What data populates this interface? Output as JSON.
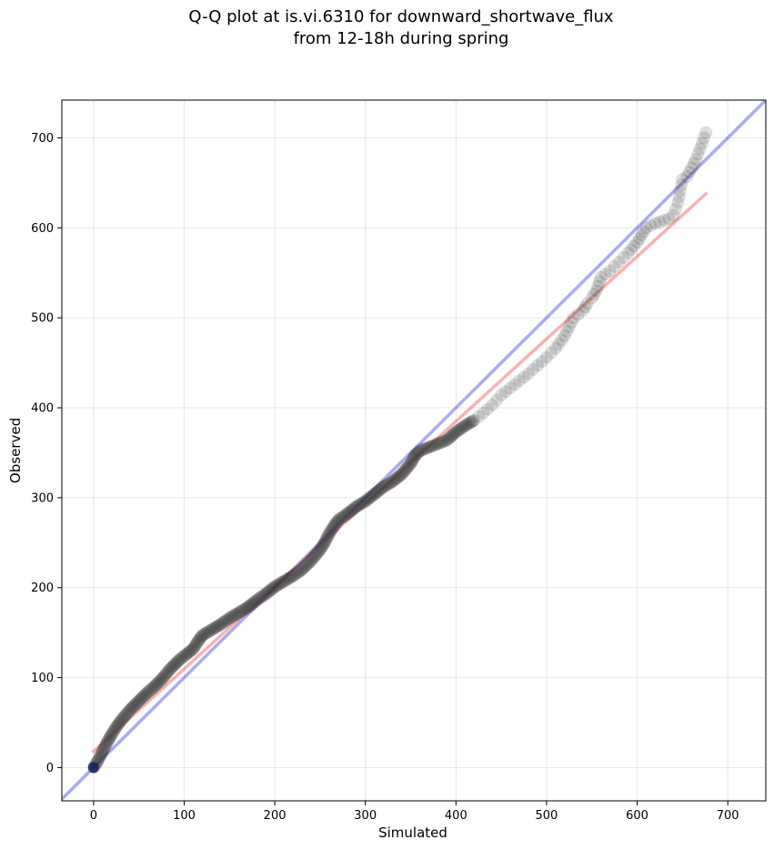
{
  "chart_data": {
    "type": "scatter",
    "title": "Q-Q plot at is.vi.6310 for downward_shortwave_flux",
    "subtitle": "from 12-18h during spring",
    "xlabel": "Simulated",
    "ylabel": "Observed",
    "xlim": [
      -35,
      742
    ],
    "ylim": [
      -37,
      742
    ],
    "x_ticks": [
      0,
      100,
      200,
      300,
      400,
      500,
      600,
      700
    ],
    "y_ticks": [
      0,
      100,
      200,
      300,
      400,
      500,
      600,
      700
    ],
    "grid": true,
    "colors": {
      "points": "#333333",
      "identity_line": "#0000dd",
      "fit_line": "#ee2222"
    },
    "reference_lines": [
      {
        "kind": "identity",
        "x": [
          -35,
          742
        ],
        "y": [
          -35,
          742
        ]
      },
      {
        "kind": "linear_fit",
        "x": [
          0,
          676
        ],
        "y": [
          18,
          638
        ]
      }
    ],
    "quantile_curve": [
      [
        0,
        0
      ],
      [
        2,
        3
      ],
      [
        5,
        8
      ],
      [
        8,
        14
      ],
      [
        12,
        22
      ],
      [
        15,
        28
      ],
      [
        20,
        37
      ],
      [
        25,
        45
      ],
      [
        30,
        52
      ],
      [
        35,
        58
      ],
      [
        40,
        64
      ],
      [
        45,
        69
      ],
      [
        50,
        74
      ],
      [
        55,
        79
      ],
      [
        60,
        84
      ],
      [
        65,
        88
      ],
      [
        70,
        93
      ],
      [
        75,
        98
      ],
      [
        80,
        104
      ],
      [
        85,
        110
      ],
      [
        90,
        115
      ],
      [
        95,
        120
      ],
      [
        100,
        124
      ],
      [
        110,
        132
      ],
      [
        115,
        140
      ],
      [
        120,
        147
      ],
      [
        130,
        153
      ],
      [
        140,
        159
      ],
      [
        150,
        166
      ],
      [
        160,
        172
      ],
      [
        170,
        178
      ],
      [
        180,
        186
      ],
      [
        190,
        193
      ],
      [
        200,
        201
      ],
      [
        210,
        207
      ],
      [
        220,
        213
      ],
      [
        230,
        220
      ],
      [
        240,
        230
      ],
      [
        250,
        242
      ],
      [
        255,
        250
      ],
      [
        260,
        260
      ],
      [
        265,
        268
      ],
      [
        270,
        275
      ],
      [
        280,
        282
      ],
      [
        290,
        290
      ],
      [
        300,
        296
      ],
      [
        310,
        304
      ],
      [
        320,
        312
      ],
      [
        330,
        318
      ],
      [
        340,
        326
      ],
      [
        350,
        338
      ],
      [
        355,
        347
      ],
      [
        360,
        352
      ],
      [
        370,
        356
      ],
      [
        380,
        360
      ],
      [
        390,
        364
      ],
      [
        400,
        373
      ],
      [
        410,
        380
      ],
      [
        420,
        386
      ],
      [
        430,
        394
      ],
      [
        440,
        403
      ],
      [
        450,
        414
      ],
      [
        460,
        422
      ],
      [
        470,
        430
      ],
      [
        480,
        438
      ],
      [
        490,
        447
      ],
      [
        500,
        456
      ],
      [
        510,
        466
      ],
      [
        520,
        480
      ],
      [
        525,
        490
      ],
      [
        530,
        500
      ],
      [
        540,
        508
      ],
      [
        545,
        516
      ],
      [
        550,
        522
      ],
      [
        555,
        530
      ],
      [
        560,
        545
      ],
      [
        570,
        552
      ],
      [
        580,
        562
      ],
      [
        590,
        572
      ],
      [
        600,
        584
      ],
      [
        605,
        592
      ],
      [
        610,
        600
      ],
      [
        620,
        605
      ],
      [
        635,
        610
      ],
      [
        640,
        614
      ],
      [
        645,
        628
      ],
      [
        650,
        654
      ],
      [
        655,
        657
      ],
      [
        665,
        676
      ],
      [
        676,
        706
      ]
    ]
  }
}
